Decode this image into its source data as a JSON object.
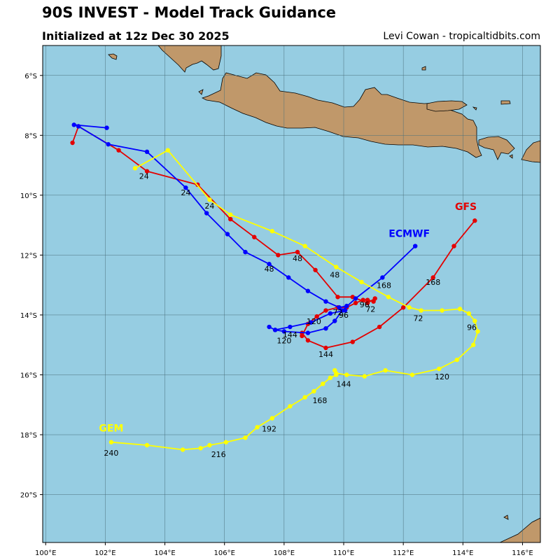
{
  "header": {
    "title": "90S INVEST - Model Track Guidance",
    "subtitle": "Initialized at 12z Dec 30 2025",
    "credit": "Levi Cowan - tropicaltidbits.com"
  },
  "colors": {
    "ocean": "#96cde2",
    "land": "#c0986a",
    "GFS": "#e30000",
    "ECMWF": "#0000ff",
    "GEM": "#ffff00"
  },
  "axes": {
    "xlabels": [
      "100°E",
      "102°E",
      "104°E",
      "106°E",
      "108°E",
      "110°E",
      "112°E",
      "114°E",
      "116°E"
    ],
    "ylabels": [
      "6°S",
      "8°S",
      "10°S",
      "12°S",
      "14°S",
      "16°S",
      "18°S",
      "20°S"
    ],
    "lon_range": [
      99.9,
      116.6
    ],
    "lat_range": [
      -5.0,
      -21.6
    ],
    "grid": true
  },
  "chart_data": {
    "type": "track_map",
    "tracks": [
      {
        "name": "GFS",
        "color": "#e30000",
        "label_point": [
          114.1,
          -10.5
        ],
        "points": [
          [
            114.4,
            -10.85
          ],
          [
            113.7,
            -11.7
          ],
          [
            113.0,
            -12.75
          ],
          [
            112.0,
            -13.75
          ],
          [
            111.2,
            -14.4
          ],
          [
            110.3,
            -14.9
          ],
          [
            109.4,
            -15.1
          ],
          [
            108.8,
            -14.85
          ],
          [
            108.6,
            -14.6
          ],
          [
            108.6,
            -14.7
          ],
          [
            108.8,
            -14.3
          ],
          [
            109.1,
            -14.05
          ],
          [
            109.4,
            -13.85
          ],
          [
            109.8,
            -13.75
          ],
          [
            110.1,
            -13.75
          ],
          [
            110.4,
            -13.6
          ],
          [
            110.65,
            -13.5
          ],
          [
            110.8,
            -13.5
          ],
          [
            111.0,
            -13.55
          ],
          [
            111.05,
            -13.45
          ],
          [
            110.8,
            -13.6
          ],
          [
            110.3,
            -13.4
          ],
          [
            109.8,
            -13.4
          ],
          [
            109.05,
            -12.5
          ],
          [
            108.45,
            -11.9
          ],
          [
            107.8,
            -12.0
          ],
          [
            107.0,
            -11.4
          ],
          [
            106.2,
            -10.8
          ],
          [
            105.1,
            -9.65
          ],
          [
            103.4,
            -9.2
          ],
          [
            102.45,
            -8.5
          ],
          [
            101.1,
            -7.7
          ],
          [
            100.9,
            -8.25
          ]
        ],
        "labels": [
          {
            "text": "24",
            "lon": 105.5,
            "lat": -10.45
          },
          {
            "text": "48",
            "lon": 108.45,
            "lat": -12.2
          },
          {
            "text": "72",
            "lon": 110.9,
            "lat": -13.9
          },
          {
            "text": "120",
            "lon": 109.0,
            "lat": -14.3
          },
          {
            "text": "144",
            "lon": 109.4,
            "lat": -15.4
          },
          {
            "text": "168",
            "lon": 113.0,
            "lat": -13.0
          }
        ]
      },
      {
        "name": "ECMWF",
        "color": "#0000ff",
        "label_point": [
          112.2,
          -11.4
        ],
        "points": [
          [
            112.4,
            -11.7
          ],
          [
            111.3,
            -12.75
          ],
          [
            110.4,
            -13.45
          ],
          [
            109.95,
            -13.85
          ],
          [
            109.7,
            -14.2
          ],
          [
            109.4,
            -14.45
          ],
          [
            108.8,
            -14.6
          ],
          [
            108.0,
            -14.55
          ],
          [
            107.7,
            -14.5
          ],
          [
            107.5,
            -14.4
          ],
          [
            107.7,
            -14.5
          ],
          [
            108.2,
            -14.4
          ],
          [
            108.9,
            -14.25
          ],
          [
            109.55,
            -13.95
          ],
          [
            110.05,
            -13.85
          ],
          [
            110.1,
            -13.7
          ],
          [
            109.85,
            -13.75
          ],
          [
            109.4,
            -13.55
          ],
          [
            108.8,
            -13.2
          ],
          [
            108.15,
            -12.75
          ],
          [
            107.5,
            -12.3
          ],
          [
            106.7,
            -11.9
          ],
          [
            106.1,
            -11.3
          ],
          [
            105.4,
            -10.6
          ],
          [
            104.7,
            -9.75
          ],
          [
            103.4,
            -8.55
          ],
          [
            102.1,
            -8.3
          ],
          [
            101.1,
            -7.7
          ],
          [
            100.95,
            -7.65
          ],
          [
            102.05,
            -7.75
          ]
        ],
        "labels": [
          {
            "text": "24",
            "lon": 104.7,
            "lat": -10.0
          },
          {
            "text": "48",
            "lon": 107.5,
            "lat": -12.55
          },
          {
            "text": "72",
            "lon": 109.8,
            "lat": -14.0
          },
          {
            "text": "96",
            "lon": 110.7,
            "lat": -13.75
          },
          {
            "text": "96",
            "lon": 110.0,
            "lat": -14.1
          },
          {
            "text": "144",
            "lon": 108.2,
            "lat": -14.75
          },
          {
            "text": "120",
            "lon": 108.0,
            "lat": -14.95
          },
          {
            "text": "168",
            "lon": 111.35,
            "lat": -13.1
          }
        ]
      },
      {
        "name": "GEM",
        "color": "#ffff00",
        "label_point": [
          102.2,
          -17.9
        ],
        "points": [
          [
            103.0,
            -9.1
          ],
          [
            104.1,
            -8.5
          ],
          [
            105.5,
            -10.15
          ],
          [
            106.2,
            -10.65
          ],
          [
            107.6,
            -11.2
          ],
          [
            108.7,
            -11.7
          ],
          [
            109.75,
            -12.4
          ],
          [
            110.6,
            -12.9
          ],
          [
            111.5,
            -13.4
          ],
          [
            112.2,
            -13.75
          ],
          [
            112.6,
            -13.85
          ],
          [
            113.3,
            -13.85
          ],
          [
            113.9,
            -13.8
          ],
          [
            114.2,
            -13.95
          ],
          [
            114.4,
            -14.2
          ],
          [
            114.5,
            -14.55
          ],
          [
            114.35,
            -15.0
          ],
          [
            113.8,
            -15.5
          ],
          [
            113.2,
            -15.8
          ],
          [
            112.3,
            -16.0
          ],
          [
            111.4,
            -15.85
          ],
          [
            110.7,
            -16.05
          ],
          [
            110.1,
            -16.0
          ],
          [
            109.75,
            -15.95
          ],
          [
            109.7,
            -15.85
          ],
          [
            109.75,
            -16.0
          ],
          [
            109.55,
            -16.1
          ],
          [
            109.3,
            -16.3
          ],
          [
            109.0,
            -16.55
          ],
          [
            108.7,
            -16.75
          ],
          [
            108.2,
            -17.05
          ],
          [
            107.6,
            -17.45
          ],
          [
            107.1,
            -17.75
          ],
          [
            106.7,
            -18.1
          ],
          [
            106.05,
            -18.25
          ],
          [
            105.5,
            -18.35
          ],
          [
            105.2,
            -18.45
          ],
          [
            104.6,
            -18.5
          ],
          [
            103.4,
            -18.35
          ],
          [
            102.2,
            -18.25
          ]
        ],
        "labels": [
          {
            "text": "24",
            "lon": 103.3,
            "lat": -9.45
          },
          {
            "text": "48",
            "lon": 109.7,
            "lat": -12.75
          },
          {
            "text": "72",
            "lon": 112.5,
            "lat": -14.2
          },
          {
            "text": "96",
            "lon": 114.3,
            "lat": -14.5
          },
          {
            "text": "120",
            "lon": 113.3,
            "lat": -16.15
          },
          {
            "text": "144",
            "lon": 110.0,
            "lat": -16.4
          },
          {
            "text": "168",
            "lon": 109.2,
            "lat": -16.95
          },
          {
            "text": "192",
            "lon": 107.5,
            "lat": -17.9
          },
          {
            "text": "216",
            "lon": 105.8,
            "lat": -18.75
          },
          {
            "text": "240",
            "lon": 102.2,
            "lat": -18.7
          }
        ]
      }
    ]
  }
}
